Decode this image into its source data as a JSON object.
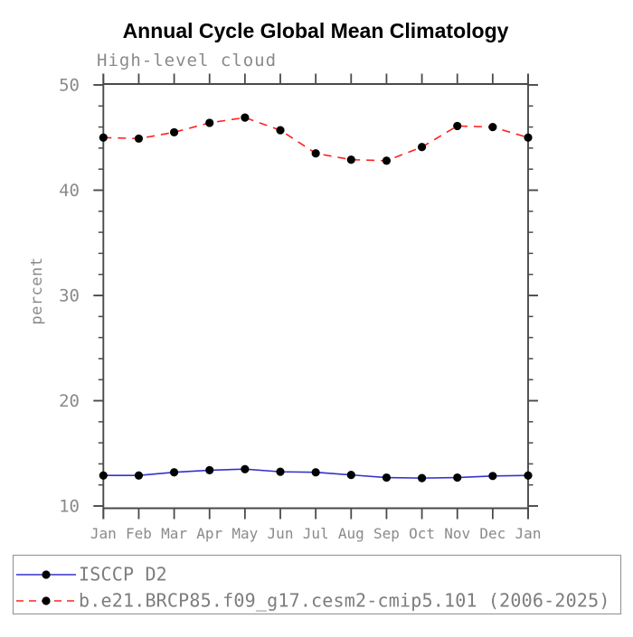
{
  "window": {
    "background": "#ffffff"
  },
  "chart_data": {
    "type": "line",
    "title": "Annual Cycle Global Mean Climatology",
    "subtitle": "High-level cloud",
    "ylabel": "percent",
    "categories": [
      "Jan",
      "Feb",
      "Mar",
      "Apr",
      "May",
      "Jun",
      "Jul",
      "Aug",
      "Sep",
      "Oct",
      "Nov",
      "Dec",
      "Jan"
    ],
    "y_axis": {
      "min": 10,
      "max": 50,
      "major_step": 10,
      "minor_step": 2,
      "tick_labels": [
        "10",
        "20",
        "30",
        "40",
        "50"
      ]
    },
    "series": [
      {
        "name": "ISCCP D2",
        "line_style": "solid",
        "color": "#3333cc",
        "marker": "filled-circle",
        "marker_color": "#000000",
        "values": [
          12.9,
          12.9,
          13.2,
          13.4,
          13.5,
          13.25,
          13.2,
          12.95,
          12.7,
          12.65,
          12.7,
          12.85,
          12.9
        ]
      },
      {
        "name": "b.e21.BRCP85.f09_g17.cesm2-cmip5.101 (2006-2025)",
        "line_style": "dashed",
        "color": "#ff2020",
        "marker": "filled-circle",
        "marker_color": "#000000",
        "values": [
          45.0,
          44.9,
          45.5,
          46.4,
          46.9,
          45.7,
          43.5,
          42.9,
          42.8,
          44.1,
          46.1,
          46.0,
          45.0
        ]
      }
    ],
    "legend": {
      "position": "bottom-left",
      "border": true
    },
    "grid": false,
    "axis_color": "#4a4a4a",
    "label_color": "#8a8a8a",
    "legend_text_color": "#7d7d7d",
    "title_color": "#000000"
  }
}
